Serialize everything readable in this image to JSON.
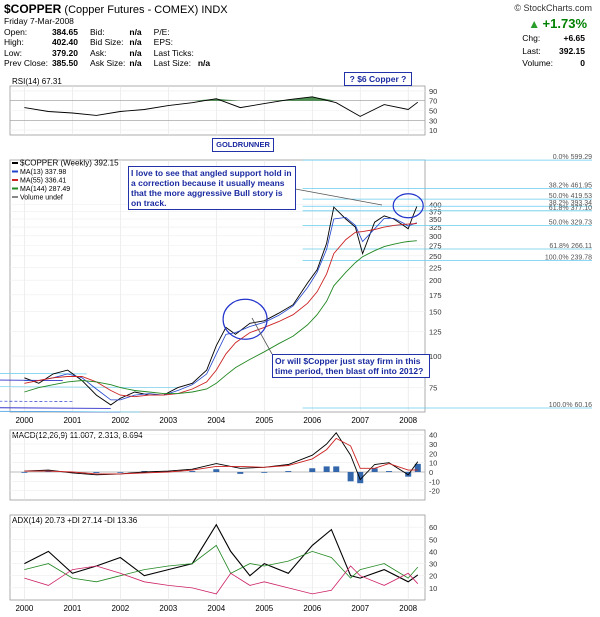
{
  "header": {
    "symbol": "$COPPER",
    "name": "(Copper Futures - COMEX)",
    "exchange": "INDX",
    "copyright": "© StockCharts.com",
    "date": "Friday  7-Mar-2008"
  },
  "quote": {
    "open_label": "Open:",
    "open": "384.65",
    "high_label": "High:",
    "high": "402.40",
    "low_label": "Low:",
    "low": "379.20",
    "prev_label": "Prev Close:",
    "prev": "385.50",
    "bid_label": "Bid:",
    "bid": "n/a",
    "bidsize_label": "Bid Size:",
    "bidsize": "n/a",
    "ask_label": "Ask:",
    "ask": "n/a",
    "asksize_label": "Ask Size:",
    "asksize": "n/a",
    "pe_label": "P/E:",
    "eps_label": "EPS:",
    "lastticks_label": "Last Ticks:",
    "lastsize_label": "Last Size:",
    "lastsize": "n/a",
    "pct": "+1.73%",
    "chg_label": "Chg:",
    "chg": "+6.65",
    "last_label": "Last:",
    "last": "392.15",
    "vol_label": "Volume:",
    "vol": "0"
  },
  "notes": {
    "six_dollar": "? $6 Copper ?",
    "goldrunner": "GOLDRUNNER",
    "support": "I love to see that angled support hold in a correction because it usually means that the more aggressive Bull story is on track.",
    "firm": "Or will $Copper just stay firm in this time period, then blast off into 2012?"
  },
  "colors": {
    "price": "#000000",
    "ma13": "#2244cc",
    "ma55": "#cc2222",
    "ma144": "#228822",
    "rsi_fill": "#2e7d32",
    "channel": "#3333cc",
    "fib_light": "#66ccee",
    "macd_hist": "#3366aa",
    "plusdi": "#228822",
    "minusdi": "#cc2266"
  },
  "chart_data": [
    {
      "type": "line",
      "title": "RSI(14) 67.31",
      "ylim": [
        0,
        100
      ],
      "ticks": [
        "90",
        "70",
        "50",
        "30",
        "10"
      ],
      "x": [
        "2000",
        "2000.5",
        "2001",
        "2001.5",
        "2002",
        "2002.5",
        "2003",
        "2003.5",
        "2004",
        "2004.5",
        "2005",
        "2005.5",
        "2006",
        "2006.5",
        "2007",
        "2007.5",
        "2008",
        "2008.2"
      ],
      "values": [
        56,
        48,
        45,
        40,
        48,
        52,
        60,
        66,
        74,
        56,
        64,
        72,
        78,
        66,
        38,
        62,
        52,
        67
      ]
    },
    {
      "type": "line",
      "title": "$COPPER (Weekly) 392.15",
      "yscale": "log",
      "ylim": [
        60,
        600
      ],
      "ticks": [
        "400",
        "375",
        "350",
        "325",
        "300",
        "275",
        "250",
        "225",
        "200",
        "175",
        "150",
        "125",
        "100",
        "75"
      ],
      "x_ticks": [
        "2000",
        "2001",
        "2002",
        "2003",
        "2004",
        "2005",
        "2006",
        "2007",
        "2008"
      ],
      "legend": [
        "$COPPER (Weekly) 392.15",
        "MA(13) 337.98",
        "MA(55) 336.41",
        "MA(144) 287.49",
        "Volume undef"
      ],
      "fib_levels": [
        {
          "label": "0.0% 599.29",
          "value": 599.29
        },
        {
          "label": "38.2% 461.95",
          "value": 461.95
        },
        {
          "label": "50.0% 419.53",
          "value": 419.53
        },
        {
          "label": "38.2% 393.34",
          "value": 393.34
        },
        {
          "label": "61.8% 377.10",
          "value": 377.1
        },
        {
          "label": "50.0% 329.73",
          "value": 329.73
        },
        {
          "label": "61.8% 266.11",
          "value": 266.11
        },
        {
          "label": "100.0% 239.78",
          "value": 239.78
        },
        {
          "label": "100.0% 60.16",
          "value": 60.16
        }
      ],
      "x": [
        2000,
        2000.3,
        2000.6,
        2000.9,
        2001.2,
        2001.5,
        2001.8,
        2002.0,
        2002.3,
        2002.6,
        2002.9,
        2003.2,
        2003.5,
        2003.8,
        2004.0,
        2004.2,
        2004.4,
        2004.7,
        2005.0,
        2005.3,
        2005.6,
        2005.9,
        2006.1,
        2006.3,
        2006.45,
        2006.7,
        2006.9,
        2007.05,
        2007.3,
        2007.5,
        2007.7,
        2007.9,
        2008.0,
        2008.1,
        2008.18
      ],
      "series": [
        {
          "name": "$COPPER (Weekly) 392.15",
          "values": [
            82,
            78,
            85,
            88,
            80,
            70,
            64,
            68,
            72,
            70,
            70,
            75,
            78,
            88,
            110,
            130,
            122,
            135,
            138,
            148,
            160,
            195,
            220,
            280,
            390,
            350,
            325,
            255,
            340,
            360,
            350,
            330,
            320,
            360,
            392
          ]
        },
        {
          "name": "MA(13) 337.98",
          "values": [
            80,
            80,
            82,
            85,
            82,
            74,
            67,
            67,
            70,
            71,
            70,
            73,
            77,
            85,
            102,
            122,
            124,
            131,
            136,
            145,
            158,
            187,
            215,
            265,
            350,
            355,
            330,
            285,
            320,
            352,
            352,
            337,
            328,
            334,
            338
          ]
        },
        {
          "name": "MA(55) 336.41",
          "values": [
            78,
            80,
            82,
            83,
            83,
            79,
            73,
            70,
            69,
            70,
            70,
            71,
            74,
            79,
            88,
            102,
            113,
            124,
            130,
            137,
            146,
            162,
            180,
            212,
            255,
            290,
            310,
            312,
            318,
            325,
            330,
            333,
            334,
            335,
            336
          ]
        },
        {
          "name": "MA(144) 287.49",
          "values": [
            72,
            75,
            77,
            79,
            80,
            79,
            77,
            75,
            73,
            72,
            71,
            71,
            72,
            74,
            78,
            84,
            90,
            97,
            104,
            112,
            120,
            133,
            146,
            165,
            190,
            215,
            235,
            248,
            262,
            272,
            278,
            283,
            285,
            286,
            287
          ]
        }
      ]
    },
    {
      "type": "line",
      "title": "MACD(12,26,9) 11.007, 2.313, 8.694",
      "ylim": [
        -30,
        45
      ],
      "ticks": [
        "40",
        "30",
        "20",
        "10",
        "0",
        "-10",
        "-20"
      ],
      "x": [
        "2000",
        "2000.5",
        "2001",
        "2001.5",
        "2002",
        "2002.5",
        "2003",
        "2003.5",
        "2004",
        "2004.5",
        "2005",
        "2005.5",
        "2006",
        "2006.3",
        "2006.5",
        "2006.8",
        "2007",
        "2007.3",
        "2007.6",
        "2008",
        "2008.2"
      ],
      "series": [
        {
          "name": "MACD",
          "values": [
            1,
            2,
            -1,
            -3,
            -2,
            0,
            1,
            3,
            9,
            4,
            5,
            8,
            18,
            30,
            42,
            18,
            -8,
            8,
            10,
            -3,
            11
          ]
        },
        {
          "name": "Signal",
          "values": [
            1,
            1,
            0,
            -2,
            -2,
            -1,
            0,
            2,
            6,
            6,
            5,
            7,
            14,
            24,
            36,
            28,
            4,
            4,
            9,
            2,
            2.3
          ]
        },
        {
          "name": "Histogram",
          "values": [
            0,
            1,
            -1,
            -1,
            0,
            1,
            1,
            1,
            3,
            -2,
            0,
            1,
            4,
            6,
            6,
            -10,
            -12,
            4,
            1,
            -5,
            8.7
          ]
        }
      ]
    },
    {
      "type": "line",
      "title": "ADX(14) 20.73 +DI 27.14 -DI 13.36",
      "ylim": [
        0,
        70
      ],
      "ticks": [
        "60",
        "50",
        "40",
        "30",
        "20",
        "10"
      ],
      "x_ticks": [
        "2000",
        "2001",
        "2002",
        "2003",
        "2004",
        "2005",
        "2006",
        "2007",
        "2008"
      ],
      "x": [
        "2000",
        "2000.5",
        "2001",
        "2001.5",
        "2002",
        "2002.5",
        "2003",
        "2003.5",
        "2004",
        "2004.3",
        "2004.7",
        "2005",
        "2005.5",
        "2006",
        "2006.4",
        "2006.8",
        "2007",
        "2007.5",
        "2008",
        "2008.2"
      ],
      "series": [
        {
          "name": "ADX(14) 20.73",
          "values": [
            30,
            40,
            22,
            28,
            35,
            20,
            25,
            30,
            62,
            40,
            20,
            30,
            22,
            45,
            58,
            20,
            18,
            25,
            15,
            20.7
          ]
        },
        {
          "name": "+DI 27.14",
          "values": [
            25,
            30,
            18,
            15,
            20,
            25,
            28,
            30,
            45,
            22,
            30,
            28,
            32,
            40,
            35,
            18,
            25,
            30,
            18,
            27.1
          ]
        },
        {
          "name": "-DI 13.36",
          "values": [
            18,
            12,
            25,
            28,
            22,
            15,
            12,
            10,
            5,
            22,
            12,
            15,
            10,
            5,
            8,
            28,
            20,
            12,
            22,
            13.4
          ]
        }
      ]
    }
  ]
}
